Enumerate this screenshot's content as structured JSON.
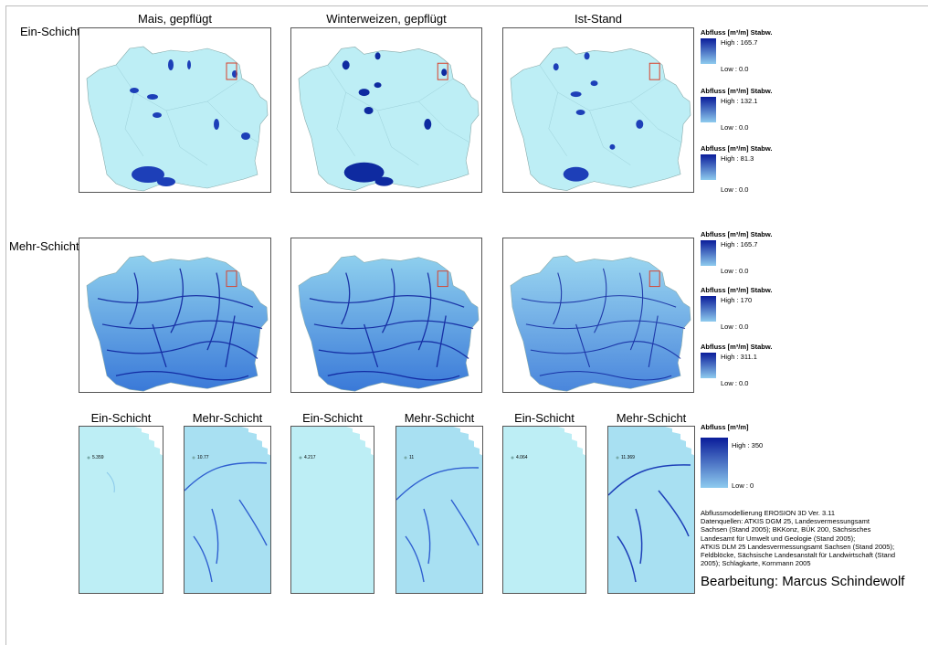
{
  "columns": [
    "Mais, gepflügt",
    "Winterweizen, gepflügt",
    "Ist-Stand"
  ],
  "rows": [
    "Ein-Schicht",
    "Mehr-Schicht"
  ],
  "detail_subtitles": [
    "Ein-Schicht",
    "Mehr-Schicht",
    "Ein-Schicht",
    "Mehr-Schicht",
    "Ein-Schicht",
    "Mehr-Schicht"
  ],
  "detail_values": [
    "5.359",
    "10.77",
    "4.217",
    "11",
    "4.064",
    "11.369"
  ],
  "legends": [
    {
      "title": "Abfluss [m³/m] Stabw.",
      "high": "High : 165.7",
      "low": "Low : 0.0"
    },
    {
      "title": "Abfluss [m³/m] Stabw.",
      "high": "High : 132.1",
      "low": "Low : 0.0"
    },
    {
      "title": "Abfluss [m³/m] Stabw.",
      "high": "High : 81.3",
      "low": "Low : 0.0"
    },
    {
      "title": "Abfluss [m³/m] Stabw.",
      "high": "High : 165.7",
      "low": "Low : 0.0"
    },
    {
      "title": "Abfluss [m³/m] Stabw.",
      "high": "High : 170",
      "low": "Low : 0.0"
    },
    {
      "title": "Abfluss [m³/m] Stabw.",
      "high": "High : 311.1",
      "low": "Low : 0.0"
    },
    {
      "title": "Abfluss [m³/m]",
      "high": "High : 350",
      "low": "Low : 0"
    }
  ],
  "credits": [
    "Abflussmodellierung EROSION 3D Ver. 3.11",
    "Datenquellen: ATKIS DGM 25, Landesvermessungsamt",
    "Sachsen (Stand 2005); BKKonz, BÜK 200, Sächsisches",
    "Landesamt für Umwelt und Geologie (Stand 2005);",
    "ATKIS DLM 25 Landesvermessungsamt Sachsen (Stand 2005);",
    "Feldblöcke, Sächsische Landesanstalt für Landwirtschaft (Stand",
    "2005); Schlagkarte, Kornmann 2005"
  ],
  "author": "Bearbeitung: Marcus Schindewolf",
  "colors": {
    "water_light": "#bdeef5",
    "flow_dark": "#0a1c9a",
    "flow_mid": "#2f5fd0",
    "marker": "#d9402a"
  }
}
